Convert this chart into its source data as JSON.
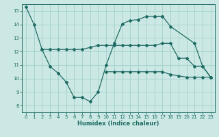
{
  "xlabel": "Humidex (Indice chaleur)",
  "background_color": "#cce8e4",
  "line_color": "#1e6b63",
  "grid_color": "#99ccc6",
  "xlim": [
    -0.5,
    23.5
  ],
  "ylim": [
    7.5,
    15.5
  ],
  "yticks": [
    8,
    9,
    10,
    11,
    12,
    13,
    14,
    15
  ],
  "xticks": [
    0,
    1,
    2,
    3,
    4,
    5,
    6,
    7,
    8,
    9,
    10,
    11,
    12,
    13,
    14,
    15,
    16,
    17,
    18,
    19,
    20,
    21,
    22,
    23
  ],
  "line1": {
    "x": [
      0,
      1,
      2,
      3,
      4,
      5,
      6,
      7,
      8,
      9,
      10,
      11,
      12,
      13,
      14,
      15,
      16,
      17,
      18,
      19,
      20,
      21,
      22,
      23
    ],
    "y": [
      15.3,
      14.0,
      12.15,
      12.15,
      12.15,
      12.15,
      12.15,
      12.15,
      12.3,
      12.45,
      12.45,
      12.45,
      12.45,
      12.45,
      12.45,
      12.45,
      12.45,
      12.6,
      12.6,
      11.5,
      11.5,
      10.9,
      10.9,
      10.1
    ]
  },
  "line2": {
    "x": [
      2,
      3,
      4,
      5,
      6,
      7,
      8,
      9,
      10,
      11,
      12,
      13,
      14,
      15,
      16,
      17
    ],
    "y": [
      12.15,
      10.9,
      10.4,
      9.75,
      8.6,
      8.6,
      8.3,
      9.0,
      11.0,
      12.6,
      14.05,
      14.3,
      14.35,
      14.6,
      14.6,
      14.6
    ]
  },
  "line3": {
    "x": [
      10,
      11,
      12,
      13,
      14,
      15,
      16,
      17,
      18,
      19,
      20,
      21,
      22,
      23
    ],
    "y": [
      10.5,
      10.5,
      10.5,
      10.5,
      10.5,
      10.5,
      10.5,
      10.5,
      10.3,
      10.2,
      10.1,
      10.1,
      10.1,
      10.1
    ]
  },
  "line4": {
    "x": [
      16,
      17,
      18,
      21,
      22,
      23
    ],
    "y": [
      14.6,
      14.6,
      13.85,
      12.6,
      10.9,
      10.1
    ]
  }
}
